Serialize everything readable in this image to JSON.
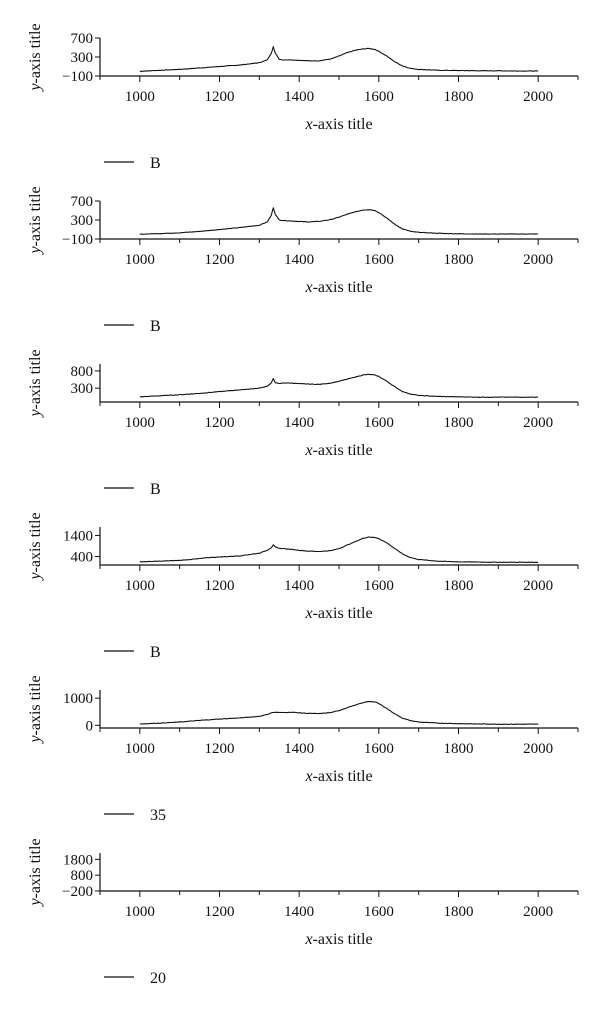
{
  "chart_data": [
    {
      "type": "line",
      "xlabel_var": "x",
      "xlabel_rest": "-axis title",
      "ylabel_var": "y",
      "ylabel_rest": "-axis title",
      "xlim": [
        900,
        2100
      ],
      "ylim": [
        -100,
        700
      ],
      "xticks": [
        1000,
        1200,
        1400,
        1600,
        1800,
        2000
      ],
      "yticks": [
        -100,
        300,
        700
      ],
      "ytick_labels": [
        "−100",
        "300",
        "700"
      ],
      "legend": "B",
      "legend_placement": "below-left",
      "grid": false,
      "series": [
        {
          "x": [
            1000,
            1050,
            1100,
            1150,
            1200,
            1250,
            1300,
            1320,
            1330,
            1335,
            1340,
            1350,
            1360,
            1380,
            1400,
            1420,
            1450,
            1480,
            1500,
            1520,
            1540,
            1560,
            1575,
            1590,
            1600,
            1620,
            1640,
            1660,
            1680,
            1700,
            1750,
            1800,
            1850,
            1900,
            1950,
            2000
          ],
          "y": [
            0,
            20,
            40,
            70,
            100,
            130,
            180,
            240,
            380,
            520,
            380,
            250,
            240,
            240,
            230,
            220,
            220,
            260,
            320,
            390,
            440,
            470,
            480,
            460,
            420,
            320,
            200,
            110,
            60,
            40,
            20,
            15,
            10,
            10,
            5,
            5
          ]
        }
      ]
    },
    {
      "type": "line",
      "xlabel_var": "x",
      "xlabel_rest": "-axis title",
      "ylabel_var": "y",
      "ylabel_rest": "-axis title",
      "xlim": [
        900,
        2100
      ],
      "ylim": [
        -100,
        700
      ],
      "xticks": [
        1000,
        1200,
        1400,
        1600,
        1800,
        2000
      ],
      "yticks": [
        -100,
        300,
        700
      ],
      "ytick_labels": [
        "−100",
        "300",
        "700"
      ],
      "legend": "B",
      "legend_placement": "below-left",
      "grid": false,
      "series": [
        {
          "x": [
            1000,
            1050,
            1100,
            1150,
            1200,
            1250,
            1300,
            1320,
            1330,
            1335,
            1340,
            1350,
            1360,
            1380,
            1400,
            1420,
            1450,
            1480,
            1500,
            1520,
            1540,
            1560,
            1575,
            1590,
            1600,
            1620,
            1640,
            1660,
            1680,
            1700,
            1750,
            1800,
            1850,
            1900,
            1950,
            2000
          ],
          "y": [
            0,
            15,
            30,
            60,
            100,
            140,
            190,
            260,
            400,
            560,
            420,
            300,
            290,
            280,
            270,
            260,
            270,
            310,
            360,
            420,
            470,
            510,
            520,
            500,
            460,
            340,
            210,
            110,
            60,
            40,
            20,
            10,
            5,
            5,
            5,
            5
          ]
        }
      ]
    },
    {
      "type": "line",
      "xlabel_var": "x",
      "xlabel_rest": "-axis title",
      "ylabel_var": "y",
      "ylabel_rest": "-axis title",
      "xlim": [
        900,
        2100
      ],
      "ylim": [
        -100,
        1000
      ],
      "xticks": [
        1000,
        1200,
        1400,
        1600,
        1800,
        2000
      ],
      "yticks": [
        300,
        800
      ],
      "ytick_labels": [
        "300",
        "800"
      ],
      "legend": "B",
      "legend_placement": "below-left",
      "grid": false,
      "series": [
        {
          "x": [
            1000,
            1050,
            1100,
            1150,
            1200,
            1250,
            1300,
            1320,
            1330,
            1335,
            1340,
            1350,
            1360,
            1380,
            1400,
            1420,
            1450,
            1480,
            1500,
            1520,
            1540,
            1560,
            1575,
            1590,
            1600,
            1620,
            1640,
            1660,
            1680,
            1700,
            1750,
            1800,
            1850,
            1900,
            1950,
            2000
          ],
          "y": [
            50,
            80,
            110,
            150,
            200,
            250,
            300,
            360,
            450,
            580,
            460,
            430,
            450,
            450,
            430,
            420,
            410,
            450,
            500,
            560,
            620,
            680,
            700,
            680,
            640,
            500,
            340,
            200,
            130,
            90,
            60,
            50,
            40,
            40,
            40,
            40
          ]
        }
      ]
    },
    {
      "type": "line",
      "xlabel_var": "x",
      "xlabel_rest": "-axis title",
      "ylabel_var": "y",
      "ylabel_rest": "-axis title",
      "xlim": [
        900,
        2100
      ],
      "ylim": [
        0,
        1800
      ],
      "xticks": [
        1000,
        1200,
        1400,
        1600,
        1800,
        2000
      ],
      "yticks": [
        400,
        1400
      ],
      "ytick_labels": [
        "400",
        "1400"
      ],
      "legend": "B",
      "legend_placement": "below-left",
      "grid": false,
      "series": [
        {
          "x": [
            1000,
            1050,
            1100,
            1150,
            1170,
            1200,
            1250,
            1300,
            1320,
            1330,
            1335,
            1340,
            1350,
            1360,
            1380,
            1400,
            1420,
            1450,
            1480,
            1500,
            1520,
            1540,
            1560,
            1575,
            1590,
            1600,
            1620,
            1640,
            1660,
            1680,
            1700,
            1750,
            1800,
            1850,
            1900,
            1950,
            2000
          ],
          "y": [
            150,
            180,
            220,
            300,
            350,
            380,
            430,
            560,
            700,
            820,
            960,
            850,
            780,
            780,
            740,
            700,
            660,
            640,
            680,
            780,
            940,
            1100,
            1260,
            1330,
            1300,
            1250,
            1050,
            780,
            520,
            350,
            260,
            180,
            150,
            140,
            130,
            130,
            130
          ]
        }
      ]
    },
    {
      "type": "line",
      "xlabel_var": "x",
      "xlabel_rest": "-axis title",
      "ylabel_var": "y",
      "ylabel_rest": "-axis title",
      "xlim": [
        900,
        2100
      ],
      "ylim": [
        -100,
        1300
      ],
      "xticks": [
        1000,
        1200,
        1400,
        1600,
        1800,
        2000
      ],
      "yticks": [
        0,
        1000
      ],
      "ytick_labels": [
        "0",
        "1000"
      ],
      "legend": "35",
      "legend_placement": "below-left",
      "grid": false,
      "series": [
        {
          "x": [
            1000,
            1050,
            1100,
            1150,
            1200,
            1250,
            1300,
            1320,
            1330,
            1340,
            1350,
            1360,
            1380,
            1400,
            1420,
            1450,
            1480,
            1500,
            1520,
            1540,
            1560,
            1575,
            1590,
            1600,
            1620,
            1640,
            1660,
            1680,
            1700,
            1750,
            1800,
            1850,
            1900,
            1950,
            2000
          ],
          "y": [
            50,
            80,
            120,
            180,
            230,
            270,
            330,
            400,
            460,
            480,
            470,
            470,
            480,
            460,
            440,
            430,
            470,
            540,
            650,
            740,
            830,
            880,
            860,
            800,
            620,
            420,
            260,
            170,
            120,
            80,
            60,
            50,
            40,
            40,
            40
          ]
        }
      ]
    },
    {
      "type": "line",
      "xlabel_var": "x",
      "xlabel_rest": "-axis title",
      "ylabel_var": "y",
      "ylabel_rest": "-axis title",
      "xlim": [
        900,
        2100
      ],
      "ylim": [
        -200,
        2200
      ],
      "xticks": [
        1000,
        1200,
        1400,
        1600,
        1800,
        2000
      ],
      "yticks": [
        -200,
        800,
        1800
      ],
      "ytick_labels": [
        "−200",
        "800",
        "1800"
      ],
      "legend": "20",
      "legend_placement": "below-left",
      "grid": false,
      "series": []
    }
  ]
}
